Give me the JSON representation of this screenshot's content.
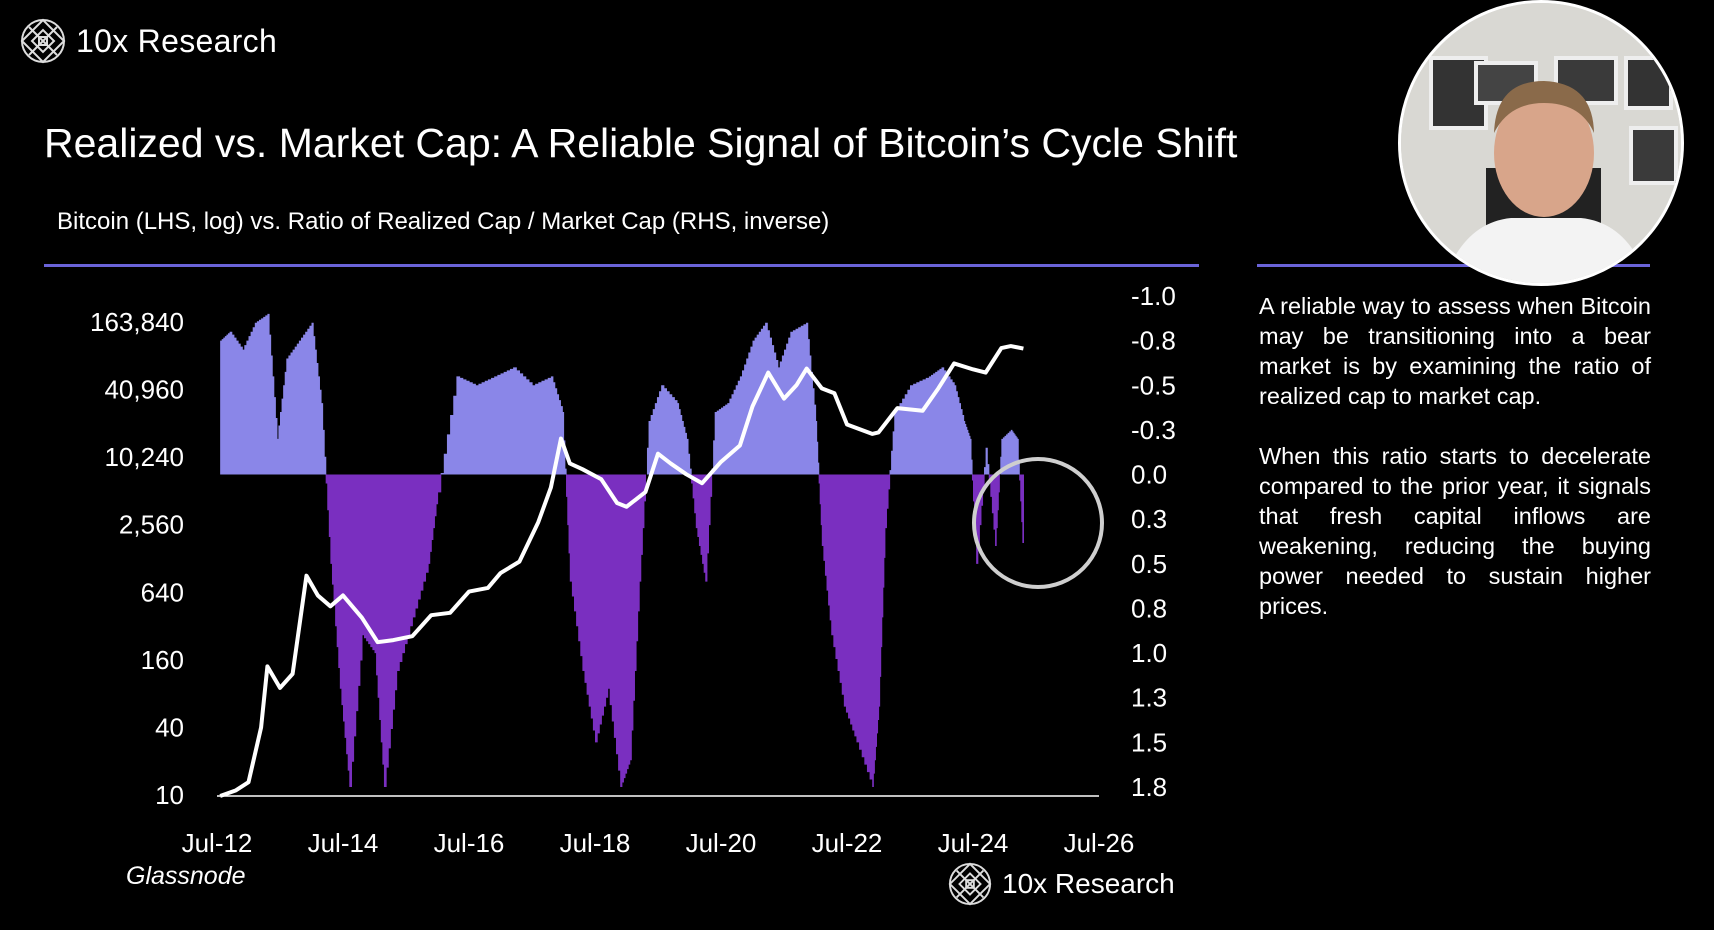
{
  "brand": {
    "name": "10x Research"
  },
  "title": "Realized vs. Market Cap: A Reliable Signal of Bitcoin’s Cycle Shift",
  "subtitle": "Bitcoin (LHS, log) vs. Ratio of Realized Cap / Market Cap (RHS, inverse)",
  "source": "Glassnode",
  "commentary": [
    "A reliable way to assess when Bitcoin may be transitioning into a bear market is by examining the ratio of realized cap to market cap.",
    "When this ratio starts to decelerate compared to the prior year, it signals that fresh capital inflows are weakening, reducing the buying power needed to sustain higher prices."
  ],
  "colors": {
    "background": "#000000",
    "price_line": "#ffffff",
    "ratio_negative": "#8a86e8",
    "ratio_positive": "#7a2fc0",
    "rule": "#6a63d8",
    "annotation_circle": "#cfcfcf"
  },
  "chart_data": {
    "type": "line+area",
    "x_tick_labels": [
      "Jul-12",
      "Jul-14",
      "Jul-16",
      "Jul-18",
      "Jul-20",
      "Jul-22",
      "Jul-24",
      "Jul-26"
    ],
    "xlim": [
      "2012-07",
      "2026-07"
    ],
    "left_axis": {
      "scale": "log",
      "ylim": [
        10,
        163840
      ],
      "tick_labels": [
        "163,840",
        "40,960",
        "10,240",
        "2,560",
        "640",
        "160",
        "40",
        "10"
      ],
      "ticks": [
        163840,
        40960,
        10240,
        2560,
        640,
        160,
        40,
        10
      ]
    },
    "right_axis": {
      "inverted": true,
      "ylim": [
        -1.0,
        1.75
      ],
      "tick_labels": [
        "-1.0",
        "-0.8",
        "-0.5",
        "-0.3",
        "0.0",
        "0.3",
        "0.5",
        "0.8",
        "1.0",
        "1.3",
        "1.5",
        "1.8"
      ],
      "ticks": [
        -1.0,
        -0.75,
        -0.5,
        -0.25,
        0,
        0.25,
        0.5,
        0.75,
        1.0,
        1.25,
        1.5,
        1.75
      ]
    },
    "grid": false,
    "series": [
      {
        "axis": "left",
        "type": "line",
        "x": [
          2012.55,
          2012.8,
          2013.0,
          2013.2,
          2013.3,
          2013.5,
          2013.7,
          2013.92,
          2014.1,
          2014.3,
          2014.5,
          2014.8,
          2015.05,
          2015.3,
          2015.6,
          2015.9,
          2016.2,
          2016.5,
          2016.8,
          2017.0,
          2017.3,
          2017.6,
          2017.8,
          2017.96,
          2018.1,
          2018.3,
          2018.6,
          2018.85,
          2019.0,
          2019.3,
          2019.5,
          2019.7,
          2019.95,
          2020.2,
          2020.5,
          2020.8,
          2021.0,
          2021.25,
          2021.5,
          2021.7,
          2021.86,
          2022.1,
          2022.3,
          2022.5,
          2022.9,
          2023.0,
          2023.3,
          2023.7,
          2023.95,
          2024.2,
          2024.5,
          2024.7,
          2024.95,
          2025.1,
          2025.3
        ],
        "values": [
          8,
          11,
          13,
          40,
          140,
          90,
          120,
          900,
          600,
          480,
          600,
          380,
          230,
          240,
          260,
          400,
          420,
          650,
          700,
          950,
          1200,
          2700,
          5500,
          15000,
          9000,
          8000,
          6500,
          4000,
          3700,
          5000,
          11000,
          9000,
          7200,
          6000,
          9300,
          13000,
          29000,
          58000,
          34000,
          45000,
          63000,
          42000,
          38000,
          20000,
          16500,
          17000,
          28000,
          26500,
          42000,
          70000,
          62000,
          58000,
          96000,
          100000,
          95000
        ]
      },
      {
        "axis": "right",
        "type": "area",
        "x": [
          2012.55,
          2012.7,
          2012.9,
          2013.1,
          2013.3,
          2013.45,
          2013.6,
          2013.8,
          2014.0,
          2014.15,
          2014.3,
          2014.45,
          2014.6,
          2014.8,
          2015.0,
          2015.15,
          2015.35,
          2015.6,
          2015.85,
          2016.0,
          2016.3,
          2016.6,
          2016.9,
          2017.2,
          2017.5,
          2017.8,
          2017.98,
          2018.1,
          2018.3,
          2018.5,
          2018.7,
          2018.9,
          2019.05,
          2019.2,
          2019.35,
          2019.55,
          2019.8,
          2019.95,
          2020.1,
          2020.25,
          2020.4,
          2020.6,
          2020.8,
          2021.0,
          2021.2,
          2021.4,
          2021.6,
          2021.85,
          2022.0,
          2022.1,
          2022.25,
          2022.45,
          2022.65,
          2022.9,
          2023.0,
          2023.1,
          2023.25,
          2023.5,
          2023.8,
          2024.0,
          2024.2,
          2024.35,
          2024.45,
          2024.55,
          2024.7,
          2024.85,
          2024.95,
          2025.1,
          2025.2,
          2025.3
        ],
        "values": [
          -0.75,
          -0.8,
          -0.7,
          -0.85,
          -0.9,
          -0.2,
          -0.65,
          -0.75,
          -0.85,
          -0.4,
          0.5,
          1.2,
          1.75,
          0.9,
          1.0,
          1.75,
          1.1,
          0.8,
          0.5,
          0.1,
          -0.55,
          -0.5,
          -0.55,
          -0.6,
          -0.5,
          -0.55,
          -0.35,
          0.6,
          1.1,
          1.5,
          1.2,
          1.75,
          1.6,
          0.6,
          -0.3,
          -0.5,
          -0.4,
          -0.2,
          0.3,
          0.6,
          -0.35,
          -0.4,
          -0.55,
          -0.75,
          -0.85,
          -0.6,
          -0.8,
          -0.85,
          -0.3,
          0.4,
          0.9,
          1.3,
          1.5,
          1.75,
          1.3,
          0.3,
          -0.35,
          -0.5,
          -0.55,
          -0.6,
          -0.5,
          -0.3,
          -0.2,
          0.5,
          -0.15,
          0.4,
          -0.2,
          -0.25,
          -0.2,
          0.5
        ]
      }
    ],
    "annotation": {
      "type": "circle"
    }
  }
}
